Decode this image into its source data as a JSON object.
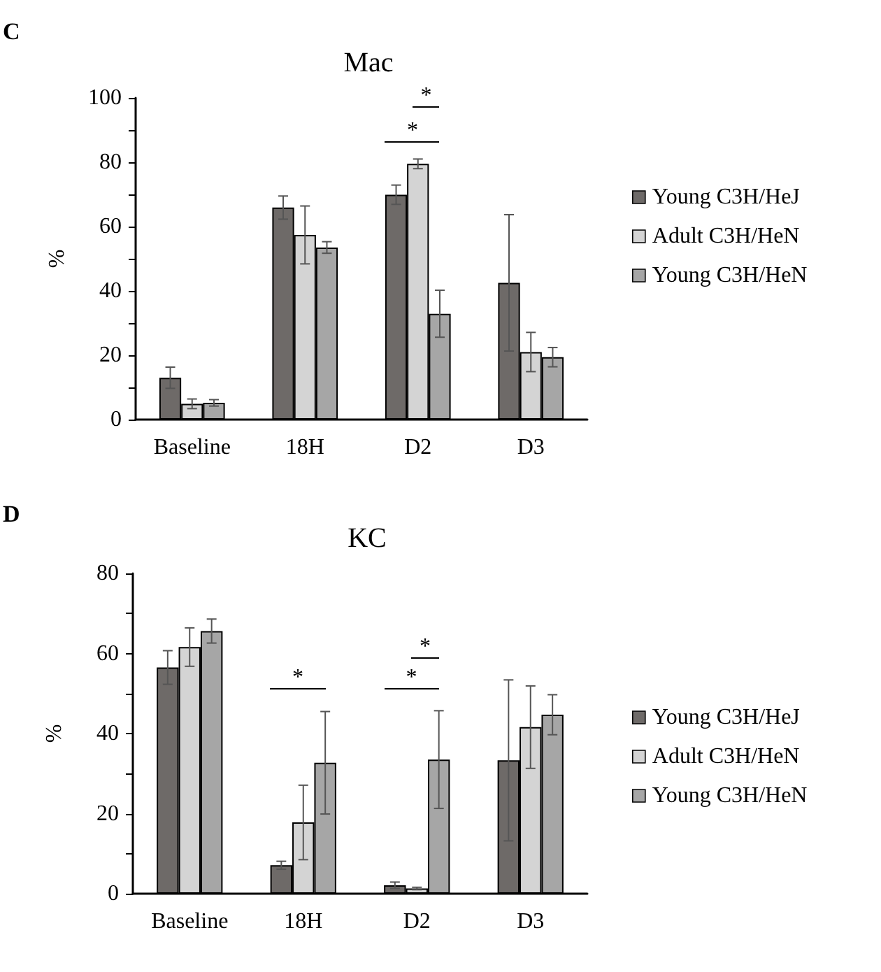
{
  "chart_data": [
    {
      "type": "bar",
      "title": "Mac",
      "ylabel": "%",
      "annotations": [
        "C",
        "*",
        "*"
      ],
      "categories": [
        "Baseline",
        "18H",
        "D2",
        "D3"
      ],
      "series": [
        {
          "name": "Young C3H/HeJ",
          "color": "#6e6a68",
          "values": [
            13.0,
            65.9,
            69.9,
            42.5
          ],
          "errors": [
            3.3,
            3.6,
            3.0,
            21.2
          ]
        },
        {
          "name": "Adult C3H/HeN",
          "color": "#d4d4d4",
          "values": [
            4.9,
            57.4,
            79.5,
            21.0
          ],
          "errors": [
            1.5,
            9.0,
            1.5,
            6.1
          ]
        },
        {
          "name": "Young C3H/HeN",
          "color": "#a6a6a6",
          "values": [
            5.2,
            53.5,
            32.9,
            19.4
          ],
          "errors": [
            1.0,
            1.8,
            7.3,
            3.0
          ]
        }
      ],
      "ylim": [
        0,
        100
      ],
      "yticks": [
        0,
        {
          "value": 10,
          "label": null
        },
        20,
        {
          "value": 30,
          "label": null
        },
        40,
        {
          "value": 50,
          "label": null
        },
        60,
        {
          "value": 70,
          "label": null
        },
        80,
        {
          "value": 90,
          "label": null
        },
        100
      ],
      "grid": false,
      "legend": "right"
    },
    {
      "type": "bar",
      "title": "KC",
      "ylabel": "%",
      "annotations": [
        "D",
        "*",
        "*",
        "*"
      ],
      "categories": [
        "Baseline",
        "18H",
        "D2",
        "D3"
      ],
      "series": [
        {
          "name": "Young C3H/HeJ",
          "color": "#6e6a68",
          "values": [
            56.5,
            7.1,
            2.1,
            33.3
          ],
          "errors": [
            4.2,
            1.0,
            0.8,
            20.1
          ]
        },
        {
          "name": "Adult C3H/HeN",
          "color": "#d4d4d4",
          "values": [
            61.6,
            17.8,
            1.3,
            41.6
          ],
          "errors": [
            4.8,
            9.3,
            0.3,
            10.3
          ]
        },
        {
          "name": "Young C3H/HeN",
          "color": "#a6a6a6",
          "values": [
            65.6,
            32.7,
            33.5,
            44.7
          ],
          "errors": [
            3.0,
            12.8,
            12.2,
            5.0
          ]
        }
      ],
      "ylim": [
        0,
        80
      ],
      "yticks": [
        0,
        {
          "value": 10,
          "label": null
        },
        20,
        {
          "value": 30,
          "label": null
        },
        40,
        {
          "value": 50,
          "label": null
        },
        60,
        {
          "value": 70,
          "label": null
        },
        80
      ],
      "grid": false,
      "legend": "right"
    }
  ]
}
